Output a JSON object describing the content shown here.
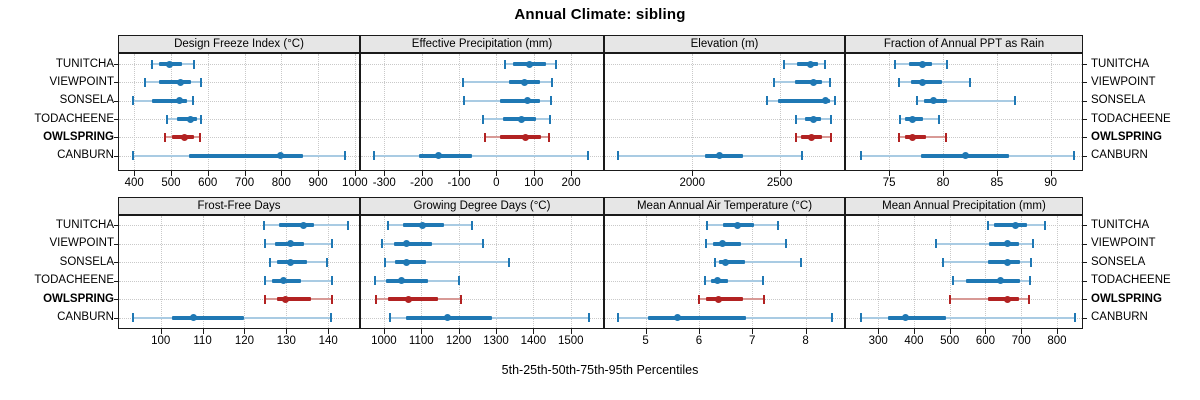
{
  "chart_data": {
    "type": "scatter",
    "subtype": "percentile_dotplot",
    "grid": "2 rows x 4 cols",
    "title": "Annual Climate: sibling",
    "caption": "5th-25th-50th-75th-95th Percentiles",
    "legend_position": "none",
    "grid_lines": "dotted horizontal and vertical",
    "sites": [
      "TUNITCHA",
      "VIEWPOINT",
      "SONSELA",
      "TODACHEENE",
      "OWLSPRING",
      "CANBURN"
    ],
    "highlight_site": "OWLSPRING",
    "percentiles": [
      "5th",
      "25th",
      "50th",
      "75th",
      "95th"
    ],
    "panels": [
      {
        "row": 0,
        "col": 0,
        "title": "Design Freeze Index (°C)",
        "xlim": [
          356,
          1014
        ],
        "ticks": [
          400,
          500,
          600,
          700,
          800,
          900,
          1000
        ],
        "series": [
          {
            "site": "TUNITCHA",
            "p": [
              448,
              468,
              495,
              531,
              564
            ]
          },
          {
            "site": "VIEWPOINT",
            "p": [
              430,
              468,
              527,
              555,
              582
            ]
          },
          {
            "site": "SONSELA",
            "p": [
              397,
              448,
              522,
              543,
              561
            ]
          },
          {
            "site": "TODACHEENE",
            "p": [
              490,
              516,
              553,
              570,
              582
            ]
          },
          {
            "site": "OWLSPRING",
            "p": [
              484,
              502,
              538,
              563,
              579
            ]
          },
          {
            "site": "CANBURN",
            "p": [
              398,
              549,
              799,
              860,
              974
            ]
          }
        ]
      },
      {
        "row": 0,
        "col": 1,
        "title": "Effective Precipitation (mm)",
        "xlim": [
          -365,
          288
        ],
        "ticks": [
          -300,
          -200,
          -100,
          0,
          100,
          200
        ],
        "series": [
          {
            "site": "TUNITCHA",
            "p": [
              22,
              45,
              88,
              133,
              160
            ]
          },
          {
            "site": "VIEWPOINT",
            "p": [
              -90,
              33,
              76,
              118,
              150
            ]
          },
          {
            "site": "SONSELA",
            "p": [
              -88,
              9,
              84,
              116,
              146
            ]
          },
          {
            "site": "TODACHEENE",
            "p": [
              -36,
              18,
              67,
              107,
              144
            ]
          },
          {
            "site": "OWLSPRING",
            "p": [
              -30,
              9,
              77,
              119,
              140
            ]
          },
          {
            "site": "CANBURN",
            "p": [
              -327,
              -206,
              -154,
              -65,
              246
            ]
          }
        ]
      },
      {
        "row": 0,
        "col": 2,
        "title": "Elevation (m)",
        "xlim": [
          1495,
          2874
        ],
        "ticks": [
          2000,
          2500
        ],
        "series": [
          {
            "site": "TUNITCHA",
            "p": [
              2527,
              2597,
              2679,
              2721,
              2760
            ]
          },
          {
            "site": "VIEWPOINT",
            "p": [
              2469,
              2588,
              2692,
              2740,
              2789
            ]
          },
          {
            "site": "SONSELA",
            "p": [
              2430,
              2490,
              2760,
              2790,
              2818
            ]
          },
          {
            "site": "TODACHEENE",
            "p": [
              2592,
              2645,
              2692,
              2737,
              2793
            ]
          },
          {
            "site": "OWLSPRING",
            "p": [
              2591,
              2625,
              2683,
              2740,
              2794
            ]
          },
          {
            "site": "CANBURN",
            "p": [
              1573,
              2072,
              2155,
              2292,
              2630
            ]
          }
        ]
      },
      {
        "row": 0,
        "col": 3,
        "title": "Fraction of Annual PPT as Rain",
        "xlim": [
          70.9,
          93.0
        ],
        "ticks": [
          75,
          80,
          85,
          90
        ],
        "series": [
          {
            "site": "TUNITCHA",
            "p": [
              75.5,
              76.8,
              78.1,
              79.0,
              80.4
            ]
          },
          {
            "site": "VIEWPOINT",
            "p": [
              75.9,
              77.0,
              78.1,
              79.9,
              82.5
            ]
          },
          {
            "site": "SONSELA",
            "p": [
              77.6,
              78.2,
              79.1,
              80.4,
              86.7
            ]
          },
          {
            "site": "TODACHEENE",
            "p": [
              76.0,
              76.5,
              77.2,
              78.1,
              79.6
            ]
          },
          {
            "site": "OWLSPRING",
            "p": [
              75.9,
              76.5,
              77.2,
              78.4,
              80.3
            ]
          },
          {
            "site": "CANBURN",
            "p": [
              72.4,
              78.0,
              82.1,
              86.1,
              92.2
            ]
          }
        ]
      },
      {
        "row": 1,
        "col": 0,
        "title": "Frost-Free Days",
        "xlim": [
          89.8,
          147.6
        ],
        "ticks": [
          100,
          110,
          120,
          130,
          140
        ],
        "series": [
          {
            "site": "TUNITCHA",
            "p": [
              124.6,
              128.2,
              134.0,
              136.6,
              144.8
            ]
          },
          {
            "site": "VIEWPOINT",
            "p": [
              124.8,
              127.2,
              131.0,
              134.2,
              141.0
            ]
          },
          {
            "site": "SONSELA",
            "p": [
              126.0,
              127.8,
              131.0,
              135.0,
              139.8
            ]
          },
          {
            "site": "TODACHEENE",
            "p": [
              124.8,
              126.6,
              129.4,
              133.6,
              141.0
            ]
          },
          {
            "site": "OWLSPRING",
            "p": [
              125.0,
              127.8,
              129.8,
              135.8,
              141.0
            ]
          },
          {
            "site": "CANBURN",
            "p": [
              93.3,
              102.6,
              107.8,
              119.8,
              140.6
            ]
          }
        ]
      },
      {
        "row": 1,
        "col": 1,
        "title": "Growing Degree Days (°C)",
        "xlim": [
          936,
          1589
        ],
        "ticks": [
          1000,
          1100,
          1200,
          1300,
          1400,
          1500
        ],
        "series": [
          {
            "site": "TUNITCHA",
            "p": [
              1011,
              1051,
              1102,
              1161,
              1236
            ]
          },
          {
            "site": "VIEWPOINT",
            "p": [
              995,
              1026,
              1060,
              1129,
              1265
            ]
          },
          {
            "site": "SONSELA",
            "p": [
              1004,
              1029,
              1060,
              1113,
              1334
            ]
          },
          {
            "site": "TODACHEENE",
            "p": [
              975,
              1006,
              1046,
              1118,
              1200
            ]
          },
          {
            "site": "OWLSPRING",
            "p": [
              978,
              1011,
              1066,
              1145,
              1205
            ]
          },
          {
            "site": "CANBURN",
            "p": [
              1015,
              1060,
              1169,
              1288,
              1549
            ]
          }
        ]
      },
      {
        "row": 1,
        "col": 2,
        "title": "Mean Annual Air Temperature (°C)",
        "xlim": [
          4.22,
          8.74
        ],
        "ticks": [
          5,
          6,
          7,
          8
        ],
        "series": [
          {
            "site": "TUNITCHA",
            "p": [
              6.16,
              6.46,
              6.73,
              7.04,
              7.49
            ]
          },
          {
            "site": "VIEWPOINT",
            "p": [
              6.13,
              6.27,
              6.44,
              6.79,
              7.63
            ]
          },
          {
            "site": "SONSELA",
            "p": [
              6.3,
              6.38,
              6.5,
              6.86,
              7.91
            ]
          },
          {
            "site": "TODACHEENE",
            "p": [
              6.11,
              6.23,
              6.35,
              6.55,
              7.21
            ]
          },
          {
            "site": "OWLSPRING",
            "p": [
              6.0,
              6.13,
              6.36,
              6.83,
              7.23
            ]
          },
          {
            "site": "CANBURN",
            "p": [
              4.49,
              5.05,
              5.6,
              6.88,
              8.49
            ]
          }
        ]
      },
      {
        "row": 1,
        "col": 3,
        "title": "Mean Annual Precipitation (mm)",
        "xlim": [
          207,
          873
        ],
        "ticks": [
          300,
          400,
          500,
          600,
          700,
          800
        ],
        "series": [
          {
            "site": "TUNITCHA",
            "p": [
              607,
              625,
              685,
              716,
              767
            ]
          },
          {
            "site": "VIEWPOINT",
            "p": [
              461,
              610,
              663,
              693,
              732
            ]
          },
          {
            "site": "SONSELA",
            "p": [
              482,
              608,
              663,
              697,
              728
            ]
          },
          {
            "site": "TODACHEENE",
            "p": [
              508,
              545,
              641,
              696,
              725
            ]
          },
          {
            "site": "OWLSPRING",
            "p": [
              501,
              608,
              662,
              693,
              722
            ]
          },
          {
            "site": "CANBURN",
            "p": [
              251,
              328,
              377,
              489,
              850
            ]
          }
        ]
      }
    ]
  },
  "colors": {
    "site_default": "#1f78b4",
    "site_default_light": "#a9cbe3",
    "highlight": "#b22222",
    "highlight_light": "#d89a96",
    "strip_bg": "#e6e6e6",
    "grid_line": "#c9c9c9",
    "border": "#1a1a1a",
    "text": "#000000"
  }
}
